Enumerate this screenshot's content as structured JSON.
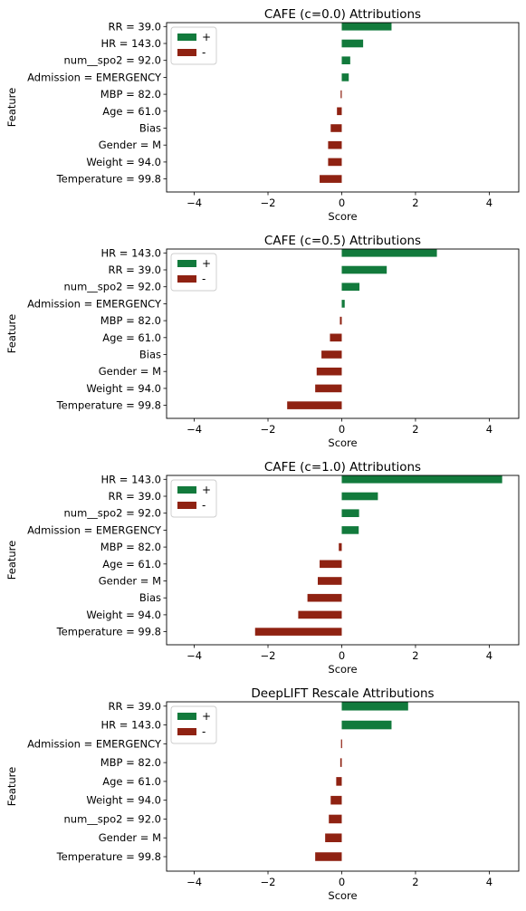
{
  "colors": {
    "positive": "#127a3c",
    "negative": "#8f2212"
  },
  "chart_data": [
    {
      "type": "bar",
      "orientation": "horizontal",
      "title": "CAFE (c=0.0) Attributions",
      "xlabel": "Score",
      "ylabel": "Feature",
      "xlim": [
        -4.75,
        4.8
      ],
      "xticks": [
        -4,
        -2,
        0,
        2,
        4
      ],
      "xtick_labels": [
        "−4",
        "−2",
        "0",
        "2",
        "4"
      ],
      "legend": {
        "position": "top-left",
        "entries": [
          "+",
          "-"
        ]
      },
      "categories": [
        "RR = 39.0",
        "HR = 143.0",
        "num__spo2 = 92.0",
        "Admission = EMERGENCY",
        "MBP = 82.0",
        "Age = 61.0",
        "Bias",
        "Gender = M",
        "Weight = 94.0",
        "Temperature = 99.8"
      ],
      "values": [
        1.35,
        0.58,
        0.23,
        0.19,
        -0.03,
        -0.13,
        -0.3,
        -0.37,
        -0.37,
        -0.6
      ]
    },
    {
      "type": "bar",
      "orientation": "horizontal",
      "title": "CAFE (c=0.5) Attributions",
      "xlabel": "Score",
      "ylabel": "Feature",
      "xlim": [
        -4.75,
        4.8
      ],
      "xticks": [
        -4,
        -2,
        0,
        2,
        4
      ],
      "xtick_labels": [
        "−4",
        "−2",
        "0",
        "2",
        "4"
      ],
      "legend": {
        "position": "top-left",
        "entries": [
          "+",
          "-"
        ]
      },
      "categories": [
        "HR = 143.0",
        "RR = 39.0",
        "num__spo2 = 92.0",
        "Admission = EMERGENCY",
        "MBP = 82.0",
        "Age = 61.0",
        "Bias",
        "Gender = M",
        "Weight = 94.0",
        "Temperature = 99.8"
      ],
      "values": [
        2.58,
        1.22,
        0.48,
        0.08,
        -0.05,
        -0.32,
        -0.55,
        -0.68,
        -0.72,
        -1.48
      ]
    },
    {
      "type": "bar",
      "orientation": "horizontal",
      "title": "CAFE (c=1.0) Attributions",
      "xlabel": "Score",
      "ylabel": "Feature",
      "xlim": [
        -4.75,
        4.8
      ],
      "xticks": [
        -4,
        -2,
        0,
        2,
        4
      ],
      "xtick_labels": [
        "−4",
        "−2",
        "0",
        "2",
        "4"
      ],
      "legend": {
        "position": "top-left",
        "entries": [
          "+",
          "-"
        ]
      },
      "categories": [
        "HR = 143.0",
        "RR = 39.0",
        "num__spo2 = 92.0",
        "Admission = EMERGENCY",
        "MBP = 82.0",
        "Age = 61.0",
        "Gender = M",
        "Bias",
        "Weight = 94.0",
        "Temperature = 99.8"
      ],
      "values": [
        4.35,
        0.98,
        0.47,
        0.46,
        -0.08,
        -0.6,
        -0.65,
        -0.93,
        -1.18,
        -2.35
      ]
    },
    {
      "type": "bar",
      "orientation": "horizontal",
      "title": "DeepLIFT Rescale Attributions",
      "xlabel": "Score",
      "ylabel": "Feature",
      "xlim": [
        -4.75,
        4.8
      ],
      "xticks": [
        -4,
        -2,
        0,
        2,
        4
      ],
      "xtick_labels": [
        "−4",
        "−2",
        "0",
        "2",
        "4"
      ],
      "legend": {
        "position": "top-left",
        "entries": [
          "+",
          "-"
        ]
      },
      "categories": [
        "RR = 39.0",
        "HR = 143.0",
        "Admission = EMERGENCY",
        "MBP = 82.0",
        "Age = 61.0",
        "Weight = 94.0",
        "num__spo2 = 92.0",
        "Gender = M",
        "Temperature = 99.8"
      ],
      "values": [
        1.8,
        1.35,
        -0.02,
        -0.04,
        -0.15,
        -0.3,
        -0.35,
        -0.45,
        -0.72
      ]
    }
  ]
}
